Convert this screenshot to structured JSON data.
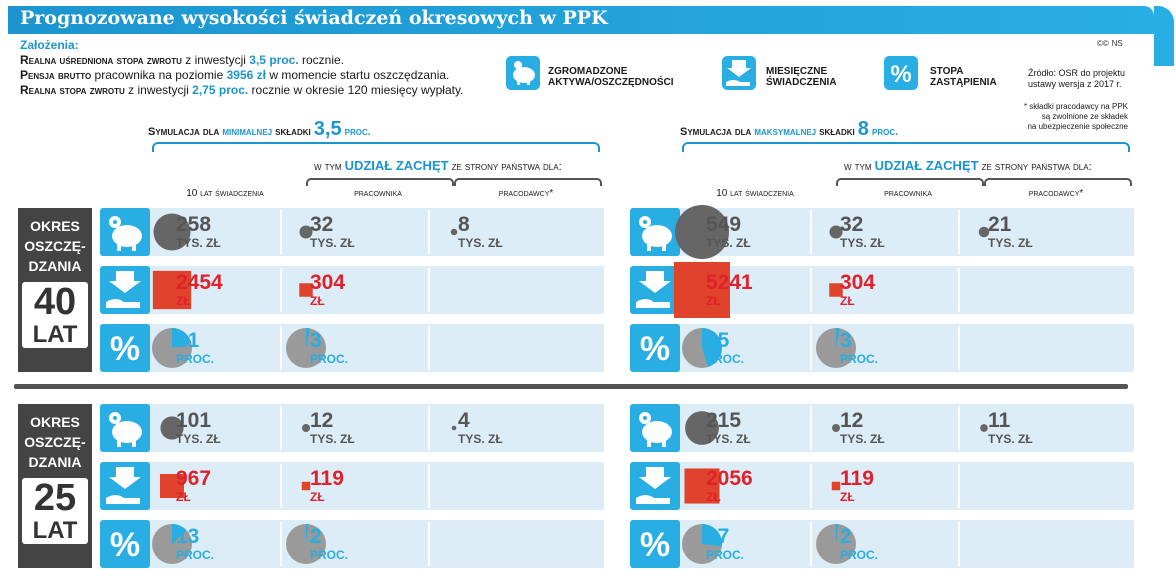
{
  "title": "Prognozowane wysokości świadczeń okresowych w PPK",
  "assumptions": {
    "heading": "Założenia:",
    "lines": [
      {
        "a": "Realna uśredniona stopa zwrotu",
        "b": " z inwestycji ",
        "c": "3,5 proc.",
        "d": " rocznie."
      },
      {
        "a": "Pensja brutto",
        "b": " pracownika na poziomie ",
        "c": "3956 zł",
        "d": " w momencie startu oszczędzania."
      },
      {
        "a": "Realna stopa zwrotu",
        "b": " z inwestycji ",
        "c": "2,75 proc.",
        "d": " rocznie w okresie 120 miesięcy wypłaty."
      }
    ]
  },
  "logo": {
    "mark": "©©",
    "initials": "NS"
  },
  "legend": {
    "assets": {
      "icon": "piggy-bank-icon",
      "label1": "ZGROMADZONE",
      "label2": "AKTYWA/OSZCZĘDNOŚCI"
    },
    "benefits": {
      "icon": "hand-arrow-icon",
      "label1": "MIESIĘCZNE",
      "label2": "ŚWIADCZENIA"
    },
    "replacement": {
      "icon": "percent-icon",
      "label1": "STOPA",
      "label2": "ZASTĄPIENIA"
    }
  },
  "source": {
    "l1": "Źródło: OSR do projektu",
    "l2": "ustawy wersja z 2017 r."
  },
  "note": {
    "l1": "* składki pracodawcy na PPK",
    "l2": "są zwolnione ze składek",
    "l3": "na ubezpieczenie społeczne"
  },
  "sim_min": {
    "pre": "Symulacja dla ",
    "hl": "minimalnej",
    "mid": " składki ",
    "big": "3,5",
    "post": " proc."
  },
  "sim_max": {
    "pre": "Symulacja dla ",
    "hl": "maksymalnej",
    "mid": " składki ",
    "big": "8",
    "post": " proc."
  },
  "subhead": {
    "pre": "w tym ",
    "hl": "UDZIAŁ ZACHĘT",
    "post": " ze strony państwa dla:"
  },
  "col_total": "10 lat świadczenia",
  "col_employee": "pracownika",
  "col_employer": "pracodawcy*",
  "periods": [
    {
      "l1": "OKRES",
      "l2": "OSZCZĘ-",
      "l3": "DZANIA",
      "n": "40",
      "u": "LAT"
    },
    {
      "l1": "OKRES",
      "l2": "OSZCZĘ-",
      "l3": "DZANIA",
      "n": "25",
      "u": "LAT"
    }
  ],
  "units": {
    "assets": "TYS. ZŁ",
    "benefit": "ZŁ",
    "rate": "PROC."
  },
  "chart_data": {
    "type": "table",
    "title": "Prognozowane wysokości świadczeń okresowych w PPK",
    "dimensions": {
      "period_years": [
        40,
        25
      ],
      "contribution_pct": [
        3.5,
        8
      ],
      "metrics": [
        "assets_thousand_pln",
        "monthly_benefit_pln",
        "replacement_rate_pct"
      ],
      "columns": [
        "total_10_years",
        "employee_incentive",
        "employer_incentive"
      ]
    },
    "blocks": [
      {
        "period": 40,
        "contribution": "3,5",
        "assets": [
          "258",
          "32",
          "8"
        ],
        "benefit": [
          "2454",
          "304",
          ""
        ],
        "rate": [
          "21",
          "3",
          ""
        ]
      },
      {
        "period": 40,
        "contribution": "8",
        "assets": [
          "549",
          "32",
          "21"
        ],
        "benefit": [
          "5241",
          "304",
          ""
        ],
        "rate": [
          "45",
          "3",
          ""
        ]
      },
      {
        "period": 25,
        "contribution": "3,5",
        "assets": [
          "101",
          "12",
          "4"
        ],
        "benefit": [
          "967",
          "119",
          ""
        ],
        "rate": [
          "13",
          "2",
          ""
        ]
      },
      {
        "period": 25,
        "contribution": "8",
        "assets": [
          "215",
          "12",
          "11"
        ],
        "benefit": [
          "2056",
          "119",
          ""
        ],
        "rate": [
          "27",
          "2",
          ""
        ]
      }
    ]
  }
}
